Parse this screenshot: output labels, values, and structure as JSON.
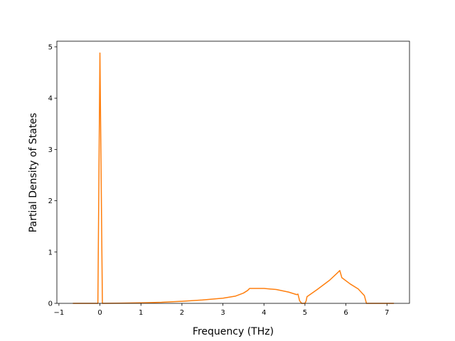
{
  "chart_data": {
    "type": "line",
    "xlabel": "Frequency (THz)",
    "ylabel": "Partial Density of States",
    "x": [
      -0.66,
      -0.05,
      0.0,
      0.06,
      0.5,
      1.0,
      1.5,
      2.0,
      2.5,
      3.0,
      3.3,
      3.5,
      3.6,
      3.65,
      4.0,
      4.3,
      4.6,
      4.8,
      4.83,
      4.87,
      4.92,
      5.0,
      5.03,
      5.05,
      5.3,
      5.6,
      5.8,
      5.85,
      5.9,
      6.1,
      6.3,
      6.45,
      6.5,
      7.17
    ],
    "series": [
      {
        "color": "#ff7f0e",
        "values": [
          0,
          0,
          4.88,
          0,
          0.003,
          0.01,
          0.02,
          0.04,
          0.065,
          0.1,
          0.14,
          0.2,
          0.25,
          0.29,
          0.29,
          0.27,
          0.22,
          0.17,
          0.18,
          0.05,
          0.0,
          0.0,
          0.05,
          0.13,
          0.27,
          0.45,
          0.6,
          0.64,
          0.5,
          0.38,
          0.28,
          0.15,
          0.0,
          0
        ]
      }
    ],
    "xlim": [
      -1.05,
      7.55
    ],
    "ylim": [
      0,
      5.11
    ],
    "xticks": [
      {
        "value": -1,
        "label": "−1"
      },
      0,
      1,
      2,
      3,
      4,
      5,
      6,
      7
    ],
    "yticks": [
      0,
      1,
      2,
      3,
      4,
      5
    ],
    "grid": false
  }
}
